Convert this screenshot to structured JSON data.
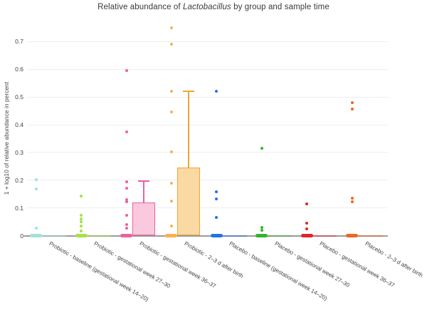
{
  "header": {
    "title_prefix": "Relative abundance of ",
    "title_emphasis": "Lactobacillus",
    "title_suffix": " by group and sample time"
  },
  "y_axis": {
    "label": "1 + log10 of relative abundance in percent"
  },
  "chart_data": {
    "type": "box-scatter",
    "title": "Relative abundance of Lactobacillus by group and sample time",
    "ylabel": "1 + log10 of relative abundance in percent",
    "ylim": [
      0,
      0.775
    ],
    "yticks": [
      0,
      0.1,
      0.2,
      0.3,
      0.4,
      0.5,
      0.6,
      0.7
    ],
    "grid": "horizontal",
    "legend": "none",
    "groups": [
      {
        "label": "Probiotic - baseline (gestational week 14–20)",
        "color": "#9fe2da",
        "points": [
          0.201,
          0.168,
          0.028
        ],
        "zero_cluster": true,
        "box": {
          "q1": 0,
          "median": 0,
          "q3": 0,
          "whisker_high": 0
        }
      },
      {
        "label": "Probiotic - gestational week 27–30",
        "color": "#a5e04a",
        "points": [
          0.143,
          0.073,
          0.06,
          0.049,
          0.036,
          0.017
        ],
        "zero_cluster": true,
        "box": {
          "q1": 0,
          "median": 0,
          "q3": 0,
          "whisker_high": 0
        }
      },
      {
        "label": "Probiotic - gestational week 36–37",
        "color": "#ee5fa2",
        "fill": "#fbc9de",
        "points": [
          0.597,
          0.375,
          0.195,
          0.172,
          0.131,
          0.122,
          0.073,
          0.039,
          0.026
        ],
        "zero_cluster": true,
        "box": {
          "q1": 0,
          "median": 0,
          "q3": 0.12,
          "whisker_high": 0.196
        }
      },
      {
        "label": "Probiotic - 2–3 d after birth",
        "color": "#f2a336",
        "point_color": "#f9b14e",
        "fill": "#fad9a3",
        "points": [
          0.75,
          0.69,
          0.52,
          0.446,
          0.303,
          0.19,
          0.125,
          0.036
        ],
        "zero_cluster": true,
        "box": {
          "q1": 0,
          "median": 0,
          "q3": 0.247,
          "whisker_high": 0.52
        }
      },
      {
        "label": "Placebo - baseline (gestational week 14–20)",
        "color": "#2273e6",
        "points": [
          0.52,
          0.157,
          0.133,
          0.066
        ],
        "zero_cluster": true,
        "box": {
          "q1": 0,
          "median": 0,
          "q3": 0,
          "whisker_high": 0
        }
      },
      {
        "label": "Placebo - gestational week 27–30",
        "color": "#35b32f",
        "points": [
          0.314,
          0.03,
          0.02
        ],
        "zero_cluster": true,
        "box": {
          "q1": 0,
          "median": 0,
          "q3": 0,
          "whisker_high": 0
        }
      },
      {
        "label": "Placebo - gestational week 36–37",
        "color": "#e42329",
        "points": [
          0.114,
          0.045,
          0.025
        ],
        "zero_cluster": true,
        "box": {
          "q1": 0,
          "median": 0,
          "q3": 0,
          "whisker_high": 0
        }
      },
      {
        "label": "Placebo - 2–3 d after birth",
        "color": "#f1661f",
        "points": [
          0.481,
          0.456,
          0.135,
          0.122
        ],
        "zero_cluster": true,
        "box": {
          "q1": 0,
          "median": 0,
          "q3": 0,
          "whisker_high": 0
        }
      }
    ]
  }
}
